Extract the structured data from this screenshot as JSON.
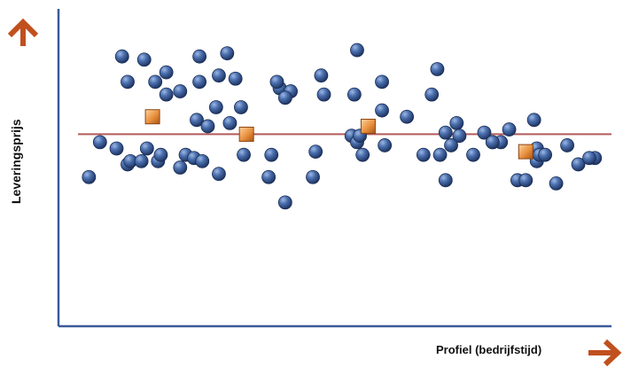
{
  "chart_data": {
    "type": "scatter",
    "title": "",
    "xlabel": "Profiel (bedrijfstijd)",
    "ylabel": "Leveringsprijs",
    "xlim": [
      0,
      100
    ],
    "ylim": [
      0,
      100
    ],
    "grid": false,
    "reference_line_y": 60.5,
    "colors": {
      "axis": "#3a5a9a",
      "arrow": "#c0501e",
      "line": "#b25a5a",
      "point": "#3d5f9a",
      "marker": "#e08a3a"
    },
    "series": [
      {
        "marker": "circle",
        "points": [
          [
            11.5,
            85
          ],
          [
            12.5,
            77
          ],
          [
            15.5,
            84
          ],
          [
            19.5,
            73
          ],
          [
            17.5,
            77
          ],
          [
            19.5,
            80
          ],
          [
            22,
            74
          ],
          [
            25.5,
            85
          ],
          [
            25.5,
            77
          ],
          [
            29,
            79
          ],
          [
            30.5,
            86
          ],
          [
            28.5,
            69
          ],
          [
            32,
            78
          ],
          [
            31,
            64
          ],
          [
            25,
            65
          ],
          [
            27,
            63
          ],
          [
            33.5,
            54
          ],
          [
            33,
            69
          ],
          [
            40,
            75
          ],
          [
            42,
            74
          ],
          [
            41,
            72
          ],
          [
            39.5,
            77
          ],
          [
            47.5,
            79
          ],
          [
            48,
            73
          ],
          [
            53.5,
            73
          ],
          [
            54,
            87
          ],
          [
            58.5,
            77
          ],
          [
            58.5,
            68
          ],
          [
            63,
            66
          ],
          [
            67.5,
            73
          ],
          [
            68.5,
            81
          ],
          [
            70,
            61
          ],
          [
            72,
            64
          ],
          [
            72.5,
            60
          ],
          [
            77,
            61
          ],
          [
            78.5,
            58
          ],
          [
            81.5,
            62
          ],
          [
            80,
            58
          ],
          [
            86,
            65
          ],
          [
            83,
            46
          ],
          [
            86.5,
            56
          ],
          [
            84.5,
            46
          ],
          [
            94,
            51
          ],
          [
            97,
            53
          ],
          [
            5.5,
            47
          ],
          [
            7.5,
            58
          ],
          [
            10.5,
            56
          ],
          [
            12.5,
            51
          ],
          [
            13,
            52
          ],
          [
            16,
            56
          ],
          [
            15,
            52
          ],
          [
            18,
            52
          ],
          [
            18.5,
            54
          ],
          [
            23,
            54
          ],
          [
            22,
            50
          ],
          [
            24.5,
            53
          ],
          [
            26,
            52
          ],
          [
            29,
            48
          ],
          [
            38,
            47
          ],
          [
            38.5,
            54
          ],
          [
            46,
            47
          ],
          [
            46.5,
            55
          ],
          [
            41,
            39
          ],
          [
            53,
            60
          ],
          [
            54,
            58
          ],
          [
            55,
            54
          ],
          [
            54.5,
            60
          ],
          [
            59,
            57
          ],
          [
            66,
            54
          ],
          [
            69,
            54
          ],
          [
            70,
            46
          ],
          [
            71,
            57
          ],
          [
            75,
            54
          ],
          [
            78.5,
            58
          ],
          [
            86.5,
            52
          ],
          [
            87,
            54
          ],
          [
            88,
            54
          ],
          [
            90,
            45
          ],
          [
            92,
            57
          ],
          [
            96,
            53
          ]
        ]
      },
      {
        "marker": "square",
        "points": [
          [
            17,
            66
          ],
          [
            34,
            60.5
          ],
          [
            56,
            63
          ],
          [
            84.5,
            55
          ]
        ]
      }
    ]
  }
}
